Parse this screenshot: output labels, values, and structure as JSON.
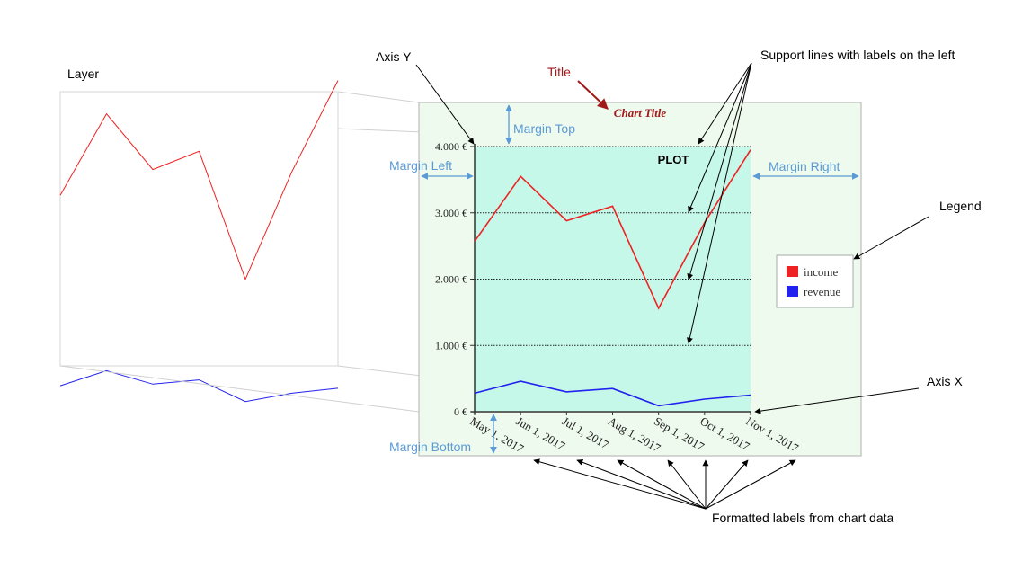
{
  "annotations": {
    "layer": "Layer",
    "axis_y": "Axis Y",
    "title": "Title",
    "support_lines": "Support lines with labels on the left",
    "margin_top": "Margin Top",
    "margin_left": "Margin Left",
    "margin_right": "Margin Right",
    "margin_bottom": "Margin Bottom",
    "legend": "Legend",
    "axis_x": "Axis X",
    "formatted_labels": "Formatted labels from chart data"
  },
  "plot_label": "PLOT",
  "colors": {
    "outer_bg": "#eefaee",
    "plot_bg": "#c6f8ea",
    "income": "#ee2222",
    "revenue": "#2222ee",
    "title_red": "#a01818",
    "margin_arrow": "#5b9bd5"
  },
  "chart_data": {
    "type": "line",
    "title": "Chart Title",
    "x": [
      "May 1, 2017",
      "Jun 1, 2017",
      "Jul 1, 2017",
      "Aug 1, 2017",
      "Sep 1, 2017",
      "Oct 1, 2017",
      "Nov 1, 2017"
    ],
    "y_ticks": [
      "0 €",
      "1.000 €",
      "2.000 €",
      "3.000 €",
      "4.000 €"
    ],
    "ylim": [
      0,
      4000
    ],
    "grid": "horizontal dotted lines",
    "legend_position": "right",
    "series": [
      {
        "name": "income",
        "values": [
          2570,
          3550,
          2880,
          3100,
          1560,
          2850,
          3950
        ]
      },
      {
        "name": "revenue",
        "values": [
          280,
          460,
          300,
          350,
          90,
          190,
          250
        ]
      }
    ]
  }
}
